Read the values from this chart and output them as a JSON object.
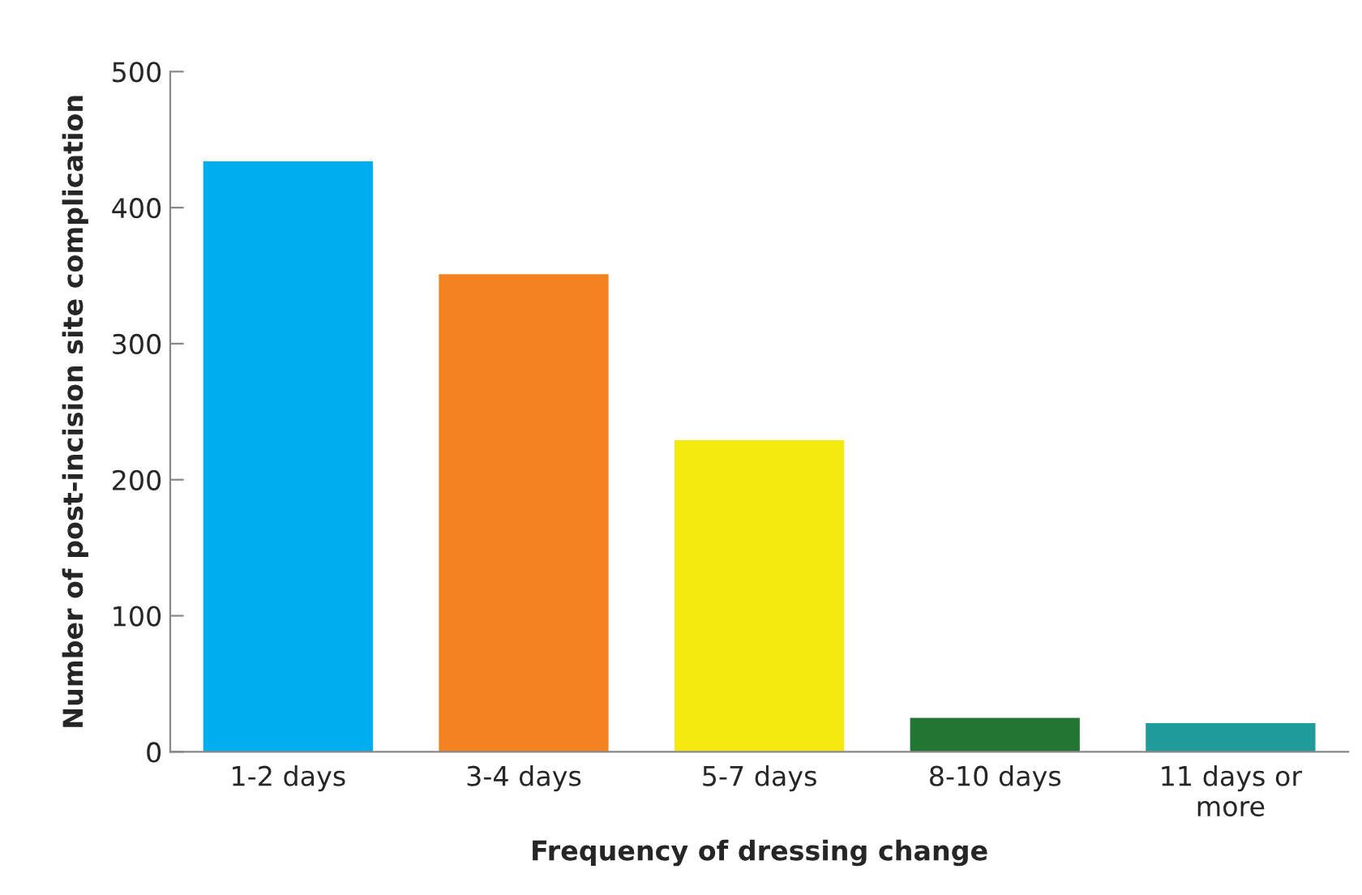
{
  "chart_data": {
    "type": "bar",
    "categories": [
      "1-2 days",
      "3-4 days",
      "5-7 days",
      "8-10 days",
      "11 days or\nmore"
    ],
    "values": [
      434,
      351,
      229,
      25,
      21
    ],
    "colors": [
      "#00aeef",
      "#f58220",
      "#f5e90f",
      "#237534",
      "#1f9b9b"
    ],
    "xlabel": "Frequency of dressing change",
    "ylabel": "Number of post-incision site complication",
    "ylim": [
      0,
      500
    ],
    "yticks": [
      0,
      100,
      200,
      300,
      400,
      500
    ],
    "grid": false
  }
}
